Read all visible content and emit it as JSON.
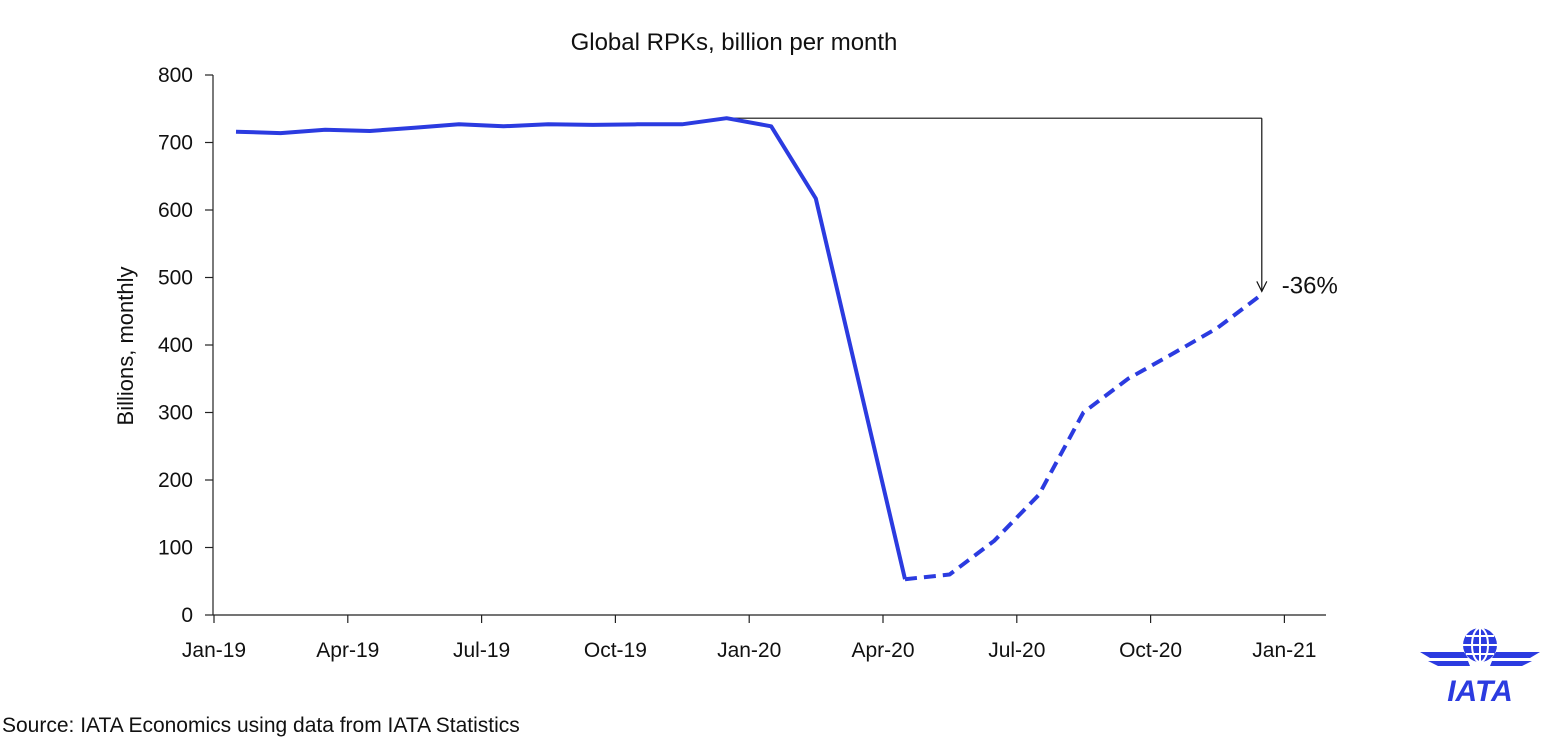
{
  "chart_data": {
    "type": "line",
    "title": "Global RPKs, billion per month",
    "xlabel": "",
    "ylabel": "Billions, monthly",
    "ylim": [
      0,
      800
    ],
    "yticks": [
      0,
      100,
      200,
      300,
      400,
      500,
      600,
      700,
      800
    ],
    "xtick_labels": [
      "Jan-19",
      "Apr-19",
      "Jul-19",
      "Oct-19",
      "Jan-20",
      "Apr-20",
      "Jul-20",
      "Oct-20",
      "Jan-21"
    ],
    "grid": false,
    "legend": "none",
    "x": [
      "Jan-19",
      "Feb-19",
      "Mar-19",
      "Apr-19",
      "May-19",
      "Jun-19",
      "Jul-19",
      "Aug-19",
      "Sep-19",
      "Oct-19",
      "Nov-19",
      "Dec-19",
      "Jan-20",
      "Feb-20",
      "Mar-20",
      "Apr-20",
      "May-20",
      "Jun-20",
      "Jul-20",
      "Aug-20",
      "Sep-20",
      "Oct-20",
      "Nov-20",
      "Dec-20"
    ],
    "series": [
      {
        "style": "solid",
        "color": "#2b3be0",
        "values": [
          716,
          714,
          719,
          717,
          722,
          727,
          724,
          727,
          726,
          727,
          727,
          736,
          724,
          617,
          335,
          53,
          null,
          null,
          null,
          null,
          null,
          null,
          null,
          null
        ]
      },
      {
        "style": "dashed",
        "color": "#2b3be0",
        "values": [
          null,
          null,
          null,
          null,
          null,
          null,
          null,
          null,
          null,
          null,
          null,
          null,
          null,
          null,
          null,
          53,
          60,
          110,
          178,
          300,
          350,
          387,
          425,
          475
        ]
      }
    ],
    "annotation": {
      "text": "-36%",
      "from_value": 736,
      "to_value": 475,
      "x_from": "Dec-19",
      "x_to": "Dec-20"
    }
  },
  "footer": {
    "source": "Source: IATA Economics using data from IATA Statistics"
  },
  "logo": {
    "text": "IATA",
    "color": "#2b3be0"
  }
}
